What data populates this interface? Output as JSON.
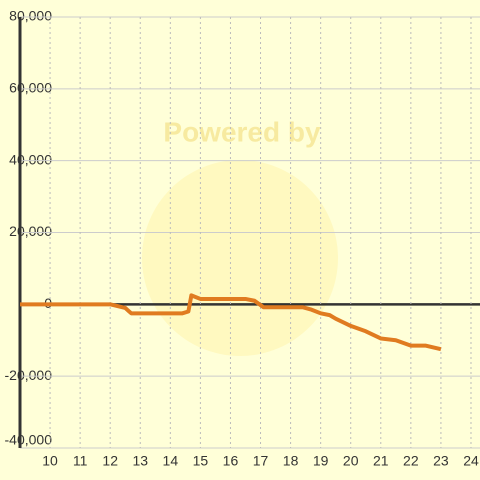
{
  "chart_data": {
    "type": "line",
    "watermark": "Powered by",
    "x": [
      9,
      12,
      12.5,
      12.7,
      14.4,
      14.6,
      14.7,
      15,
      16.5,
      16.8,
      17.1,
      18.4,
      18.7,
      19,
      19.3,
      19.5,
      20,
      20.5,
      21,
      21.5,
      22,
      22.5,
      23
    ],
    "series": [
      {
        "color": "#e07b20",
        "values": [
          0,
          0,
          -1000,
          -2500,
          -2500,
          -2000,
          2500,
          1500,
          1500,
          1000,
          -800,
          -800,
          -1500,
          -2500,
          -3000,
          -4000,
          -6000,
          -7500,
          -9500,
          -10000,
          -11500,
          -11500,
          -12500
        ]
      }
    ],
    "xlim": [
      9,
      24.3
    ],
    "xticks": [
      10,
      11,
      12,
      13,
      14,
      15,
      16,
      17,
      18,
      19,
      20,
      21,
      22,
      23,
      24
    ],
    "ylim": [
      -40000,
      80000
    ],
    "yticks": [
      {
        "value": -40000,
        "label": "-40,000"
      },
      {
        "value": -20000,
        "label": "-20,000"
      },
      0,
      {
        "value": 20000,
        "label": "20,000"
      },
      {
        "value": 40000,
        "label": "40,000"
      },
      {
        "value": 60000,
        "label": "60,000"
      },
      {
        "value": 80000,
        "label": "80,000"
      }
    ],
    "grid": true
  }
}
